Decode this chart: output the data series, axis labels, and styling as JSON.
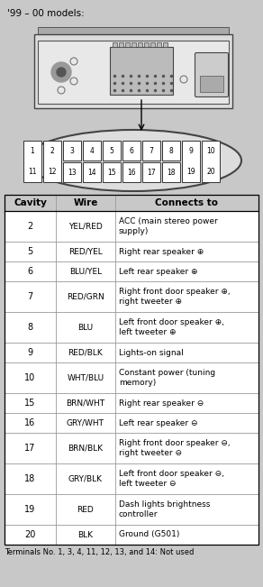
{
  "title": "'99 – 00 models:",
  "bg_color": "#c8c8c8",
  "table_header": [
    "Cavity",
    "Wire",
    "Connects to"
  ],
  "table_rows": [
    [
      "2",
      "YEL/RED",
      "ACC (main stereo power\nsupply)"
    ],
    [
      "5",
      "RED/YEL",
      "Right rear speaker ⊕"
    ],
    [
      "6",
      "BLU/YEL",
      "Left rear speaker ⊕"
    ],
    [
      "7",
      "RED/GRN",
      "Right front door speaker ⊕,\nright tweeter ⊕"
    ],
    [
      "8",
      "BLU",
      "Left front door speaker ⊕,\nleft tweeter ⊕"
    ],
    [
      "9",
      "RED/BLK",
      "Lights-on signal"
    ],
    [
      "10",
      "WHT/BLU",
      "Constant power (tuning\nmemory)"
    ],
    [
      "15",
      "BRN/WHT",
      "Right rear speaker ⊖"
    ],
    [
      "16",
      "GRY/WHT",
      "Left rear speaker ⊖"
    ],
    [
      "17",
      "BRN/BLK",
      "Right front door speaker ⊖,\nright tweeter ⊖"
    ],
    [
      "18",
      "GRY/BLK",
      "Left front door speaker ⊖,\nleft tweeter ⊖"
    ],
    [
      "19",
      "RED",
      "Dash lights brightness\ncontroller"
    ],
    [
      "20",
      "BLK",
      "Ground (G501)"
    ]
  ],
  "footer": "Terminals No. 1, 3, 4, 11, 12, 13, and 14: Not used",
  "connector_pins_top": [
    "1",
    "2",
    "3",
    "4",
    "5",
    "6",
    "7",
    "8",
    "9",
    "10"
  ],
  "connector_pins_bot": [
    "11",
    "12",
    "13",
    "14",
    "15",
    "16",
    "17",
    "18",
    "19",
    "20"
  ]
}
